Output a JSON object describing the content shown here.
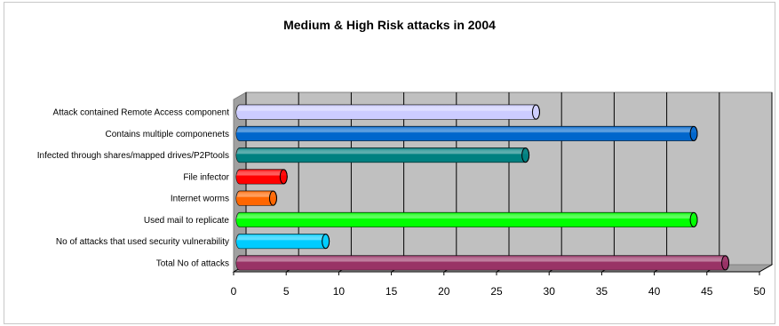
{
  "chart_data": {
    "type": "bar",
    "orientation": "horizontal",
    "style": "3d-cylinder",
    "title": "Medium & High Risk attacks in 2004",
    "xlabel": "",
    "ylabel": "",
    "xlim": [
      0,
      50
    ],
    "xticks": [
      0,
      5,
      10,
      15,
      20,
      25,
      30,
      35,
      40,
      45,
      50
    ],
    "grid": true,
    "legend": "none",
    "categories": [
      "Attack contained Remote Access component",
      "Contains multiple componenets",
      "Infected through shares/mapped drives/P2Ptools",
      "File infector",
      "Internet worms",
      "Used mail to replicate",
      "No of attacks that used security vulnerability",
      "Total No of attacks"
    ],
    "values": [
      28.5,
      43.5,
      27.5,
      4.5,
      3.5,
      43.5,
      8.5,
      46.5
    ],
    "colors": [
      "#ccccff",
      "#0066cc",
      "#008080",
      "#ff0000",
      "#ff6600",
      "#00ff00",
      "#00ccff",
      "#993366"
    ],
    "plot_background": "#c0c0c0"
  }
}
